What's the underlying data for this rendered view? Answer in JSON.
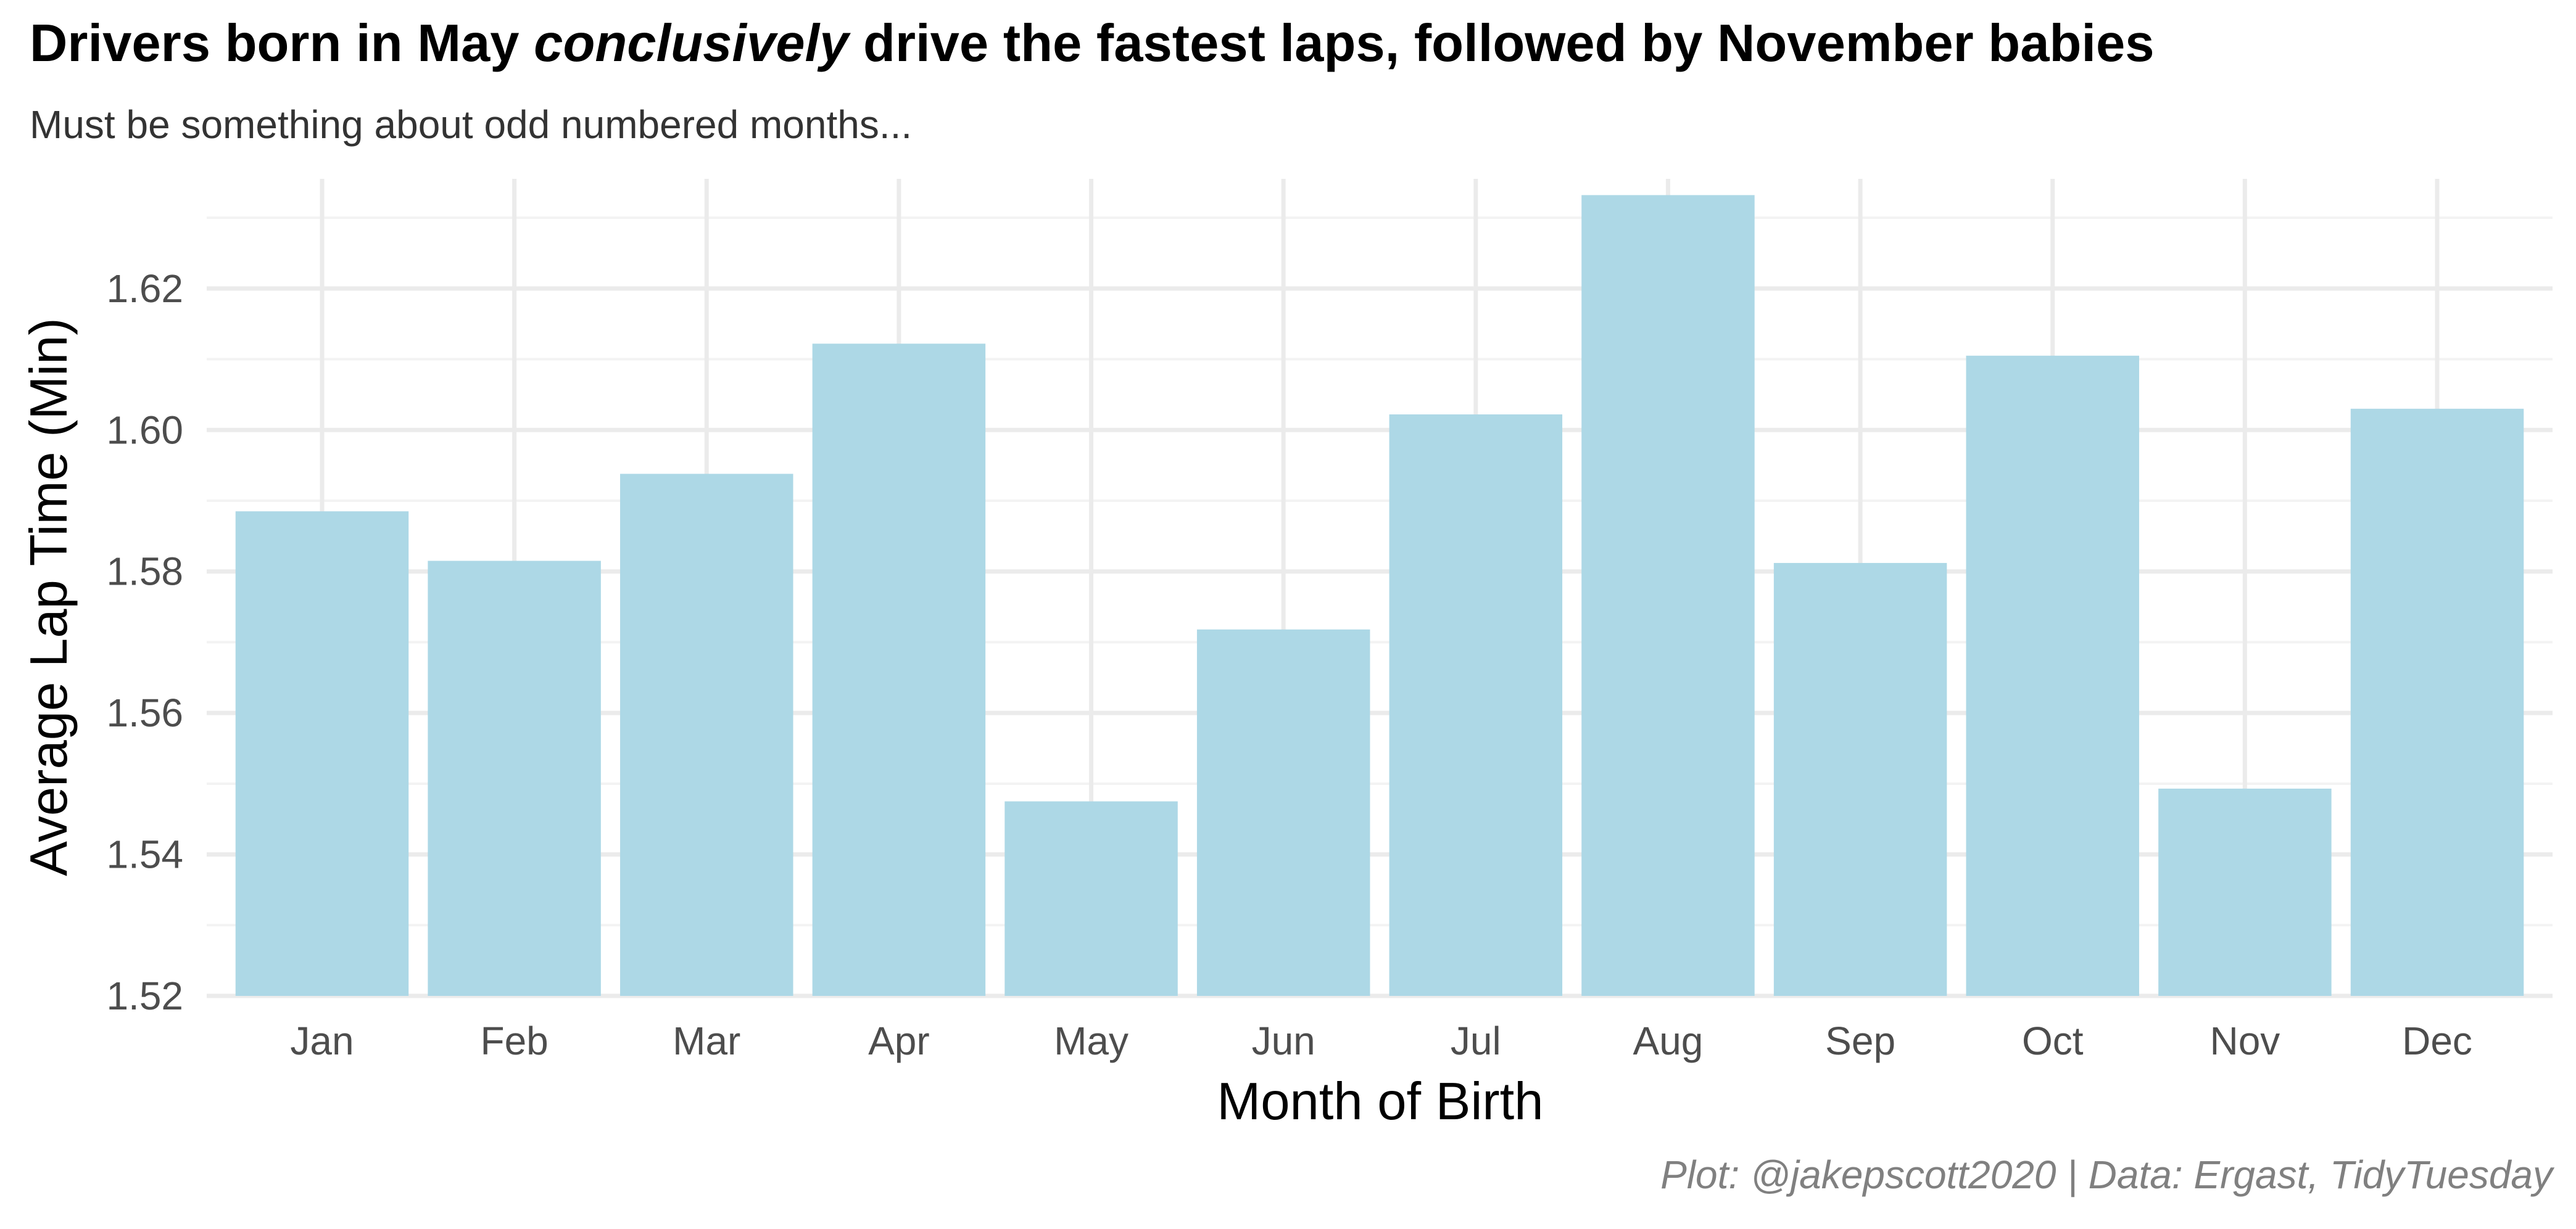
{
  "header": {
    "title_before": "Drivers born in May ",
    "title_emphasis": "conclusively",
    "title_after": " drive the fastest laps, followed by November babies",
    "subtitle": "Must be something about odd numbered months...",
    "caption": "Plot: @jakepscott2020 | Data: Ergast, TidyTuesday"
  },
  "colors": {
    "bar": "#add8e6",
    "grid_major": "#ebebeb",
    "grid_minor": "#f3f3f3",
    "tick_text": "#4d4d4d",
    "axis_title": "#000000"
  },
  "chart_data": {
    "type": "bar",
    "title": "Drivers born in May conclusively drive the fastest laps, followed by November babies",
    "subtitle": "Must be something about odd numbered months...",
    "xlabel": "Month of Birth",
    "ylabel": "Average Lap Time (Min)",
    "categories": [
      "Jan",
      "Feb",
      "Mar",
      "Apr",
      "May",
      "Jun",
      "Jul",
      "Aug",
      "Sep",
      "Oct",
      "Nov",
      "Dec"
    ],
    "values": [
      1.5885,
      1.5815,
      1.5938,
      1.6122,
      1.5475,
      1.5718,
      1.6022,
      1.6332,
      1.5812,
      1.6105,
      1.5493,
      1.603
    ],
    "ylim": [
      1.52,
      1.6355
    ],
    "yticks": [
      1.52,
      1.54,
      1.56,
      1.58,
      1.6,
      1.62
    ],
    "ytick_labels": [
      "1.52",
      "1.54",
      "1.56",
      "1.58",
      "1.60",
      "1.62"
    ],
    "grid": true,
    "legend": "none"
  }
}
